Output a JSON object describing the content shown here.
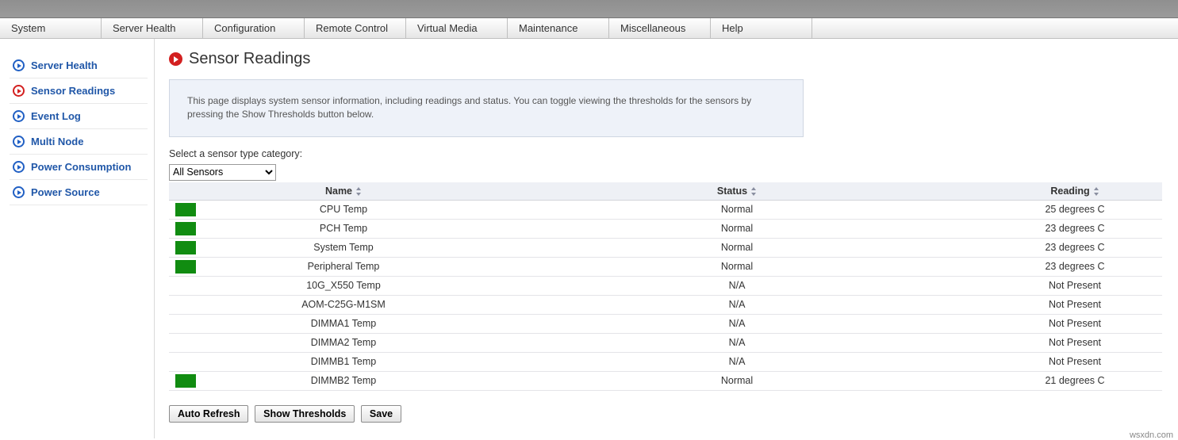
{
  "menubar": [
    "System",
    "Server Health",
    "Configuration",
    "Remote Control",
    "Virtual Media",
    "Maintenance",
    "Miscellaneous",
    "Help"
  ],
  "sidebar": {
    "items": [
      {
        "label": "Server Health",
        "active": false
      },
      {
        "label": "Sensor Readings",
        "active": true
      },
      {
        "label": "Event Log",
        "active": false
      },
      {
        "label": "Multi Node",
        "active": false
      },
      {
        "label": "Power Consumption",
        "active": false
      },
      {
        "label": "Power Source",
        "active": false
      }
    ]
  },
  "page": {
    "title": "Sensor Readings",
    "info": "This page displays system sensor information, including readings and status. You can toggle viewing the thresholds for the sensors by pressing the Show Thresholds button below.",
    "select_label": "Select a sensor type category:",
    "select_value": "All Sensors"
  },
  "table": {
    "columns": [
      "",
      "Name",
      "Status",
      "Reading"
    ],
    "rows": [
      {
        "swatch": "#118c11",
        "name": "CPU Temp",
        "status": "Normal",
        "reading": "25 degrees C"
      },
      {
        "swatch": "#118c11",
        "name": "PCH Temp",
        "status": "Normal",
        "reading": "23 degrees C"
      },
      {
        "swatch": "#118c11",
        "name": "System Temp",
        "status": "Normal",
        "reading": "23 degrees C"
      },
      {
        "swatch": "#118c11",
        "name": "Peripheral Temp",
        "status": "Normal",
        "reading": "23 degrees C"
      },
      {
        "swatch": "",
        "name": "10G_X550 Temp",
        "status": "N/A",
        "reading": "Not Present"
      },
      {
        "swatch": "",
        "name": "AOM-C25G-M1SM",
        "status": "N/A",
        "reading": "Not Present"
      },
      {
        "swatch": "",
        "name": "DIMMA1 Temp",
        "status": "N/A",
        "reading": "Not Present"
      },
      {
        "swatch": "",
        "name": "DIMMA2 Temp",
        "status": "N/A",
        "reading": "Not Present"
      },
      {
        "swatch": "",
        "name": "DIMMB1 Temp",
        "status": "N/A",
        "reading": "Not Present"
      },
      {
        "swatch": "#118c11",
        "name": "DIMMB2 Temp",
        "status": "Normal",
        "reading": "21 degrees C"
      }
    ]
  },
  "buttons": {
    "auto_refresh": "Auto Refresh",
    "show_thresholds": "Show Thresholds",
    "save": "Save"
  },
  "watermark": "wsxdn.com",
  "colors": {
    "status_ok": "#118c11",
    "link": "#2057a8",
    "accent_active": "#d32020",
    "info_bg": "#eef2f9"
  }
}
